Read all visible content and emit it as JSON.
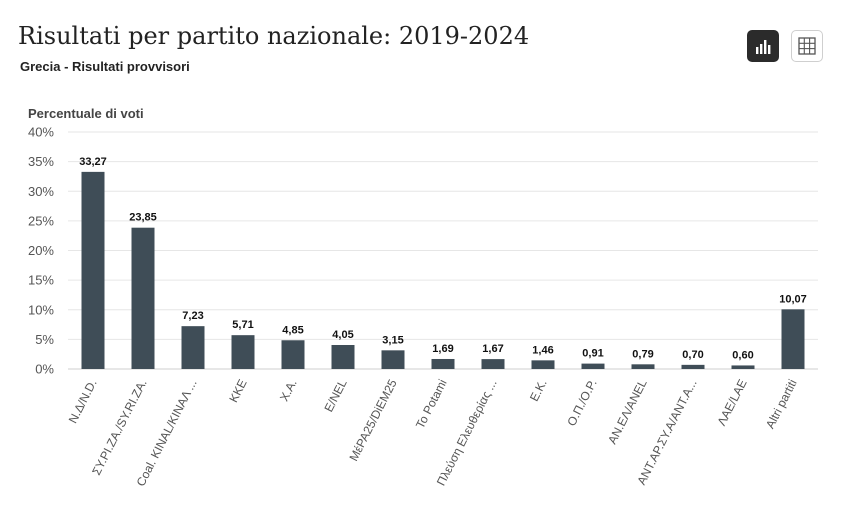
{
  "header": {
    "title": "Risultati per partito nazionale: 2019-2024",
    "subtitle": "Grecia - Risultati provvisori"
  },
  "toolbar": {
    "chart_view_icon": "bar-chart-icon",
    "table_view_icon": "table-grid-icon"
  },
  "colors": {
    "bar": "#3f4d57",
    "grid": "#e6e6e6",
    "axis_text": "#555555",
    "label_text": "#111111"
  },
  "chart_data": {
    "type": "bar",
    "ylabel": "Percentuale di voti",
    "ylim": [
      0,
      40
    ],
    "yticks": [
      "0%",
      "5%",
      "10%",
      "15%",
      "20%",
      "25%",
      "30%",
      "35%",
      "40%"
    ],
    "grid": true,
    "categories": [
      "Ν.Δ/Ν.D.",
      "ΣΥ.ΡΙ.ΖΑ./SY.RI.ZA.",
      "Coal. KINAL/KINAΛ ...",
      "ΚΚΕ",
      "Χ.Α.",
      "Ε/ΝΕL",
      "ΜέΡΑ25/DiEM25",
      "Το Potami",
      "Πλεύση Ελευθερίας ...",
      "Ε.Κ.",
      "Ο.Π./Ο.Ρ.",
      "ΑΝ.ΕΛ/ΑΝΕL",
      "ΑΝΤ.ΑΡ.ΣΥ.Α/ΑΝΤ.Α...",
      "ΛΑΕ/LΑΕ",
      "Altri partiti"
    ],
    "values": [
      33.27,
      23.85,
      7.23,
      5.71,
      4.85,
      4.05,
      3.15,
      1.69,
      1.67,
      1.46,
      0.91,
      0.79,
      0.7,
      0.6,
      10.07
    ],
    "value_labels": [
      "33,27",
      "23,85",
      "7,23",
      "5,71",
      "4,85",
      "4,05",
      "3,15",
      "1,69",
      "1,67",
      "1,46",
      "0,91",
      "0,79",
      "0,70",
      "0,60",
      "10,07"
    ]
  }
}
